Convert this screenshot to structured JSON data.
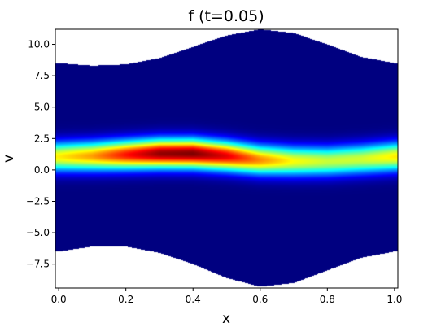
{
  "chart_data": {
    "type": "heatmap",
    "title": "f (t=0.05)",
    "xlabel": "x",
    "ylabel": "v",
    "xlim": [
      -0.01,
      1.01
    ],
    "ylim": [
      -9.4,
      11.2
    ],
    "x_ticks": [
      0.0,
      0.2,
      0.4,
      0.6,
      0.8,
      1.0
    ],
    "x_tick_labels": [
      "0.0",
      "0.2",
      "0.4",
      "0.6",
      "0.8",
      "1.0"
    ],
    "y_ticks": [
      -7.5,
      -5.0,
      -2.5,
      0.0,
      2.5,
      5.0,
      7.5,
      10.0
    ],
    "y_tick_labels": [
      "−7.5",
      "−5.0",
      "−2.5",
      "0.0",
      "2.5",
      "5.0",
      "7.5",
      "10.0"
    ],
    "grid": false,
    "colormap": "jet",
    "domain_upper_boundary": {
      "x": [
        0.0,
        0.1,
        0.2,
        0.3,
        0.4,
        0.5,
        0.6,
        0.7,
        0.8,
        0.9,
        1.0
      ],
      "v": [
        8.5,
        8.3,
        8.4,
        8.9,
        9.8,
        10.7,
        11.2,
        10.9,
        10.0,
        9.0,
        8.5
      ]
    },
    "domain_lower_boundary": {
      "x": [
        0.0,
        0.1,
        0.2,
        0.3,
        0.4,
        0.5,
        0.6,
        0.7,
        0.8,
        0.9,
        1.0
      ],
      "v": [
        -6.5,
        -6.1,
        -6.1,
        -6.6,
        -7.5,
        -8.6,
        -9.3,
        -9.0,
        -8.0,
        -7.0,
        -6.5
      ]
    },
    "density_peak_velocity": {
      "x": [
        0.0,
        0.1,
        0.2,
        0.3,
        0.4,
        0.5,
        0.6,
        0.7,
        0.8,
        0.9,
        1.0
      ],
      "v": [
        1.05,
        1.1,
        1.2,
        1.3,
        1.3,
        1.1,
        0.8,
        0.7,
        0.7,
        0.85,
        1.05
      ]
    },
    "density_peak_value": {
      "x": [
        0.0,
        0.1,
        0.2,
        0.3,
        0.4,
        0.5,
        0.6,
        0.7,
        0.8,
        0.9,
        1.0
      ],
      "f": [
        0.64,
        0.72,
        0.86,
        0.98,
        1.0,
        0.9,
        0.74,
        0.62,
        0.57,
        0.58,
        0.64
      ]
    },
    "density_width_v": 0.8
  }
}
